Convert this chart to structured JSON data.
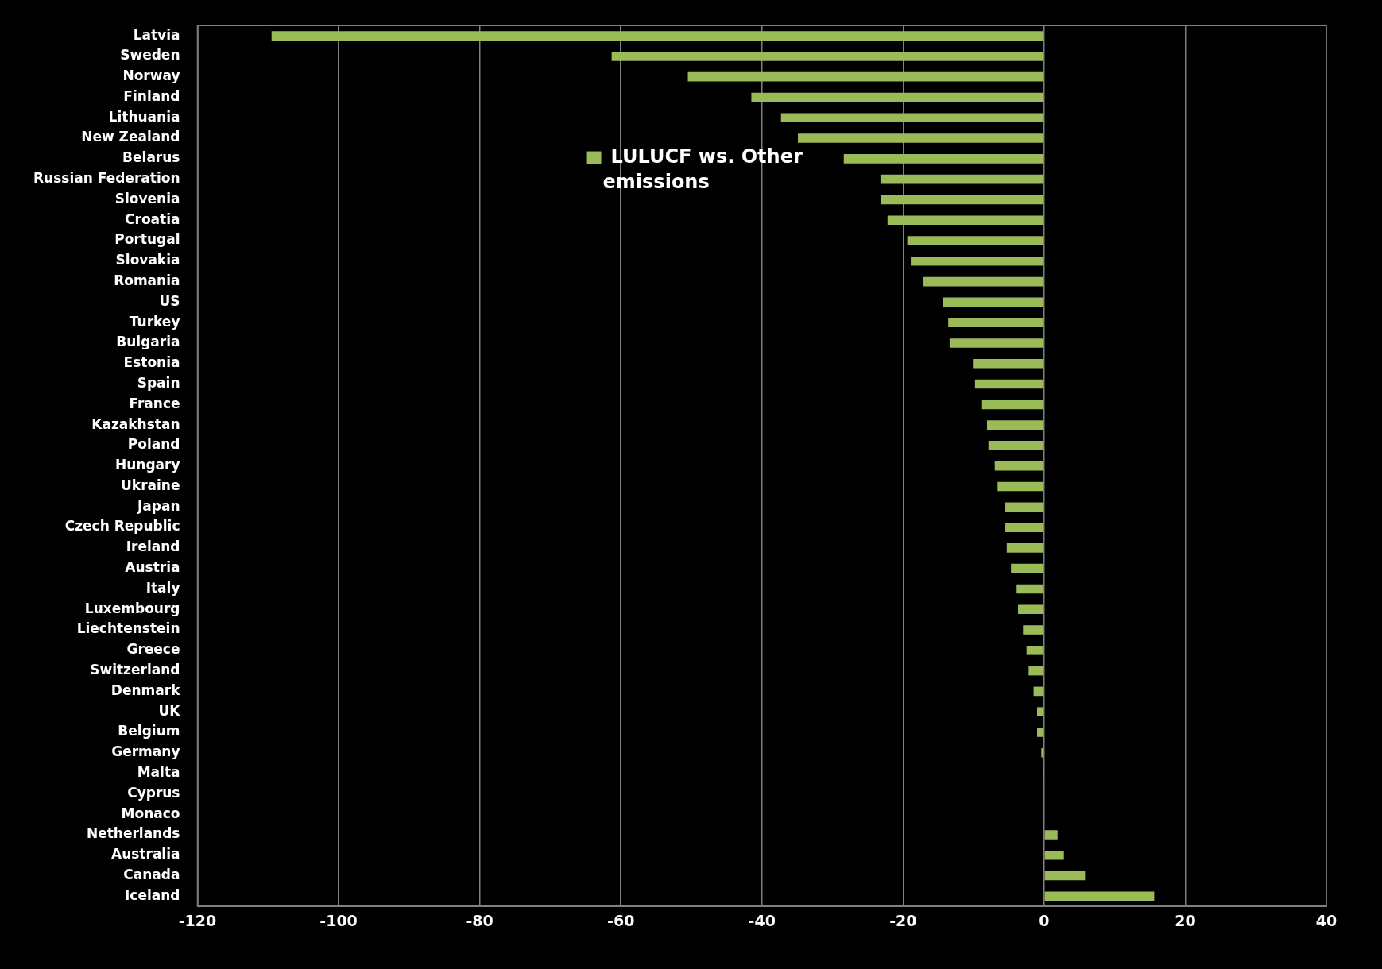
{
  "chart_data": {
    "type": "bar",
    "orientation": "horizontal",
    "categories": [
      "Latvia",
      "Sweden",
      "Norway",
      "Finland",
      "Lithuania",
      "New Zealand",
      "Belarus",
      "Russian Federation",
      "Slovenia",
      "Croatia",
      "Portugal",
      "Slovakia",
      "Romania",
      "US",
      "Turkey",
      "Bulgaria",
      "Estonia",
      "Spain",
      "France",
      "Kazakhstan",
      "Poland",
      "Hungary",
      "Ukraine",
      "Japan",
      "Czech Republic",
      "Ireland",
      "Austria",
      "Italy",
      "Luxembourg",
      "Liechtenstein",
      "Greece",
      "Switzerland",
      "Denmark",
      "UK",
      "Belgium",
      "Germany",
      "Malta",
      "Cyprus",
      "Monaco",
      "Netherlands",
      "Australia",
      "Canada",
      "Iceland"
    ],
    "series": [
      {
        "name": "LULUCF ws. Other emissions",
        "color": "#9bbb59",
        "values": [
          -109.5,
          -61.3,
          -50.5,
          -41.5,
          -37.3,
          -34.9,
          -28.4,
          -23.2,
          -23.1,
          -22.2,
          -19.4,
          -18.9,
          -17.1,
          -14.3,
          -13.6,
          -13.4,
          -10.1,
          -9.8,
          -8.8,
          -8.1,
          -7.9,
          -7.0,
          -6.6,
          -5.5,
          -5.5,
          -5.3,
          -4.7,
          -3.9,
          -3.7,
          -3.0,
          -2.5,
          -2.2,
          -1.5,
          -1.0,
          -1.0,
          -0.4,
          -0.2,
          0,
          0,
          1.9,
          2.8,
          5.8,
          15.6
        ]
      }
    ],
    "xlim": [
      -120,
      40
    ],
    "xticks": [
      -120,
      -100,
      -80,
      -60,
      -40,
      -20,
      0,
      20,
      40
    ],
    "grid": "x",
    "legend": "top"
  }
}
